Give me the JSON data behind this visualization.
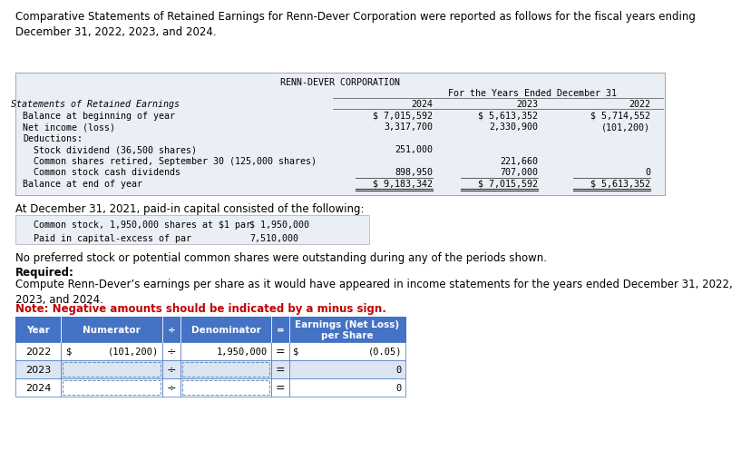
{
  "intro_text": "Comparative Statements of Retained Earnings for Renn-Dever Corporation were reported as follows for the fiscal years ending\nDecember 31, 2022, 2023, and 2024.",
  "corp_title": "RENN-DEVER CORPORATION",
  "table1_header_sub": "For the Years Ended December 31",
  "table1_years": [
    "2024",
    "2023",
    "2022"
  ],
  "table1_col_header": "Statements of Retained Earnings",
  "table1_rows": [
    {
      "label": "Balance at beginning of year",
      "vals": [
        "$ 7,015,592",
        "$ 5,613,352",
        "$ 5,714,552"
      ],
      "indent": 0,
      "bold": false
    },
    {
      "label": "Net income (loss)",
      "vals": [
        "3,317,700",
        "2,330,900",
        "(101,200)"
      ],
      "indent": 0,
      "bold": false
    },
    {
      "label": "Deductions:",
      "vals": [
        "",
        "",
        ""
      ],
      "indent": 0,
      "bold": false
    },
    {
      "label": "  Stock dividend (36,500 shares)",
      "vals": [
        "251,000",
        "",
        ""
      ],
      "indent": 0,
      "bold": false
    },
    {
      "label": "  Common shares retired, September 30 (125,000 shares)",
      "vals": [
        "",
        "221,660",
        ""
      ],
      "indent": 0,
      "bold": false
    },
    {
      "label": "  Common stock cash dividends",
      "vals": [
        "898,950",
        "707,000",
        "0"
      ],
      "indent": 0,
      "bold": false
    },
    {
      "label": "Balance at end of year",
      "vals": [
        "$ 9,183,342",
        "$ 7,015,592",
        "$ 5,613,352"
      ],
      "indent": 0,
      "bold": false
    }
  ],
  "paid_in_intro": "At December 31, 2021, paid-in capital consisted of the following:",
  "paid_in_rows": [
    {
      "label": "  Common stock, 1,950,000 shares at $1 par",
      "val": "$ 1,950,000"
    },
    {
      "label": "  Paid in capital-excess of par",
      "val": "7,510,000"
    }
  ],
  "no_preferred_text": "No preferred stock or potential common shares were outstanding during any of the periods shown.",
  "required_label": "Required:",
  "required_text": "Compute Renn-Dever’s earnings per share as it would have appeared in income statements for the years ended December 31, 2022,\n2023, and 2024.",
  "note_text": "Note: Negative amounts should be indicated by a minus sign.",
  "eps_headers": [
    "Year",
    "Numerator",
    "÷",
    "Denominator",
    "=",
    "Earnings (Net Loss)\nper Share"
  ],
  "eps_rows": [
    {
      "year": "2022",
      "num": "$ (101,200)",
      "div": "÷",
      "denom": "1,950,000",
      "eq": "=",
      "result": "$          (0.05)",
      "has_num": true,
      "has_denom": true
    },
    {
      "year": "2023",
      "num": "",
      "div": "÷",
      "denom": "",
      "eq": "=",
      "result": "0",
      "has_num": false,
      "has_denom": false
    },
    {
      "year": "2024",
      "num": "",
      "div": "÷",
      "denom": "",
      "eq": "=",
      "result": "0",
      "has_num": false,
      "has_denom": false
    }
  ],
  "main_table_bg": "#eaeef5",
  "eps_header_bg": "#4472c4",
  "eps_border": "#4472c4",
  "eps_row_bg": [
    "#ffffff",
    "#dce6f1",
    "#ffffff"
  ],
  "font_mono": "DejaVu Sans Mono",
  "font_sans": "DejaVu Sans",
  "fs_intro": 8.5,
  "fs_table": 7.2,
  "fs_body": 8.5,
  "fs_eps": 8.0,
  "fs_eps_hdr": 7.5
}
